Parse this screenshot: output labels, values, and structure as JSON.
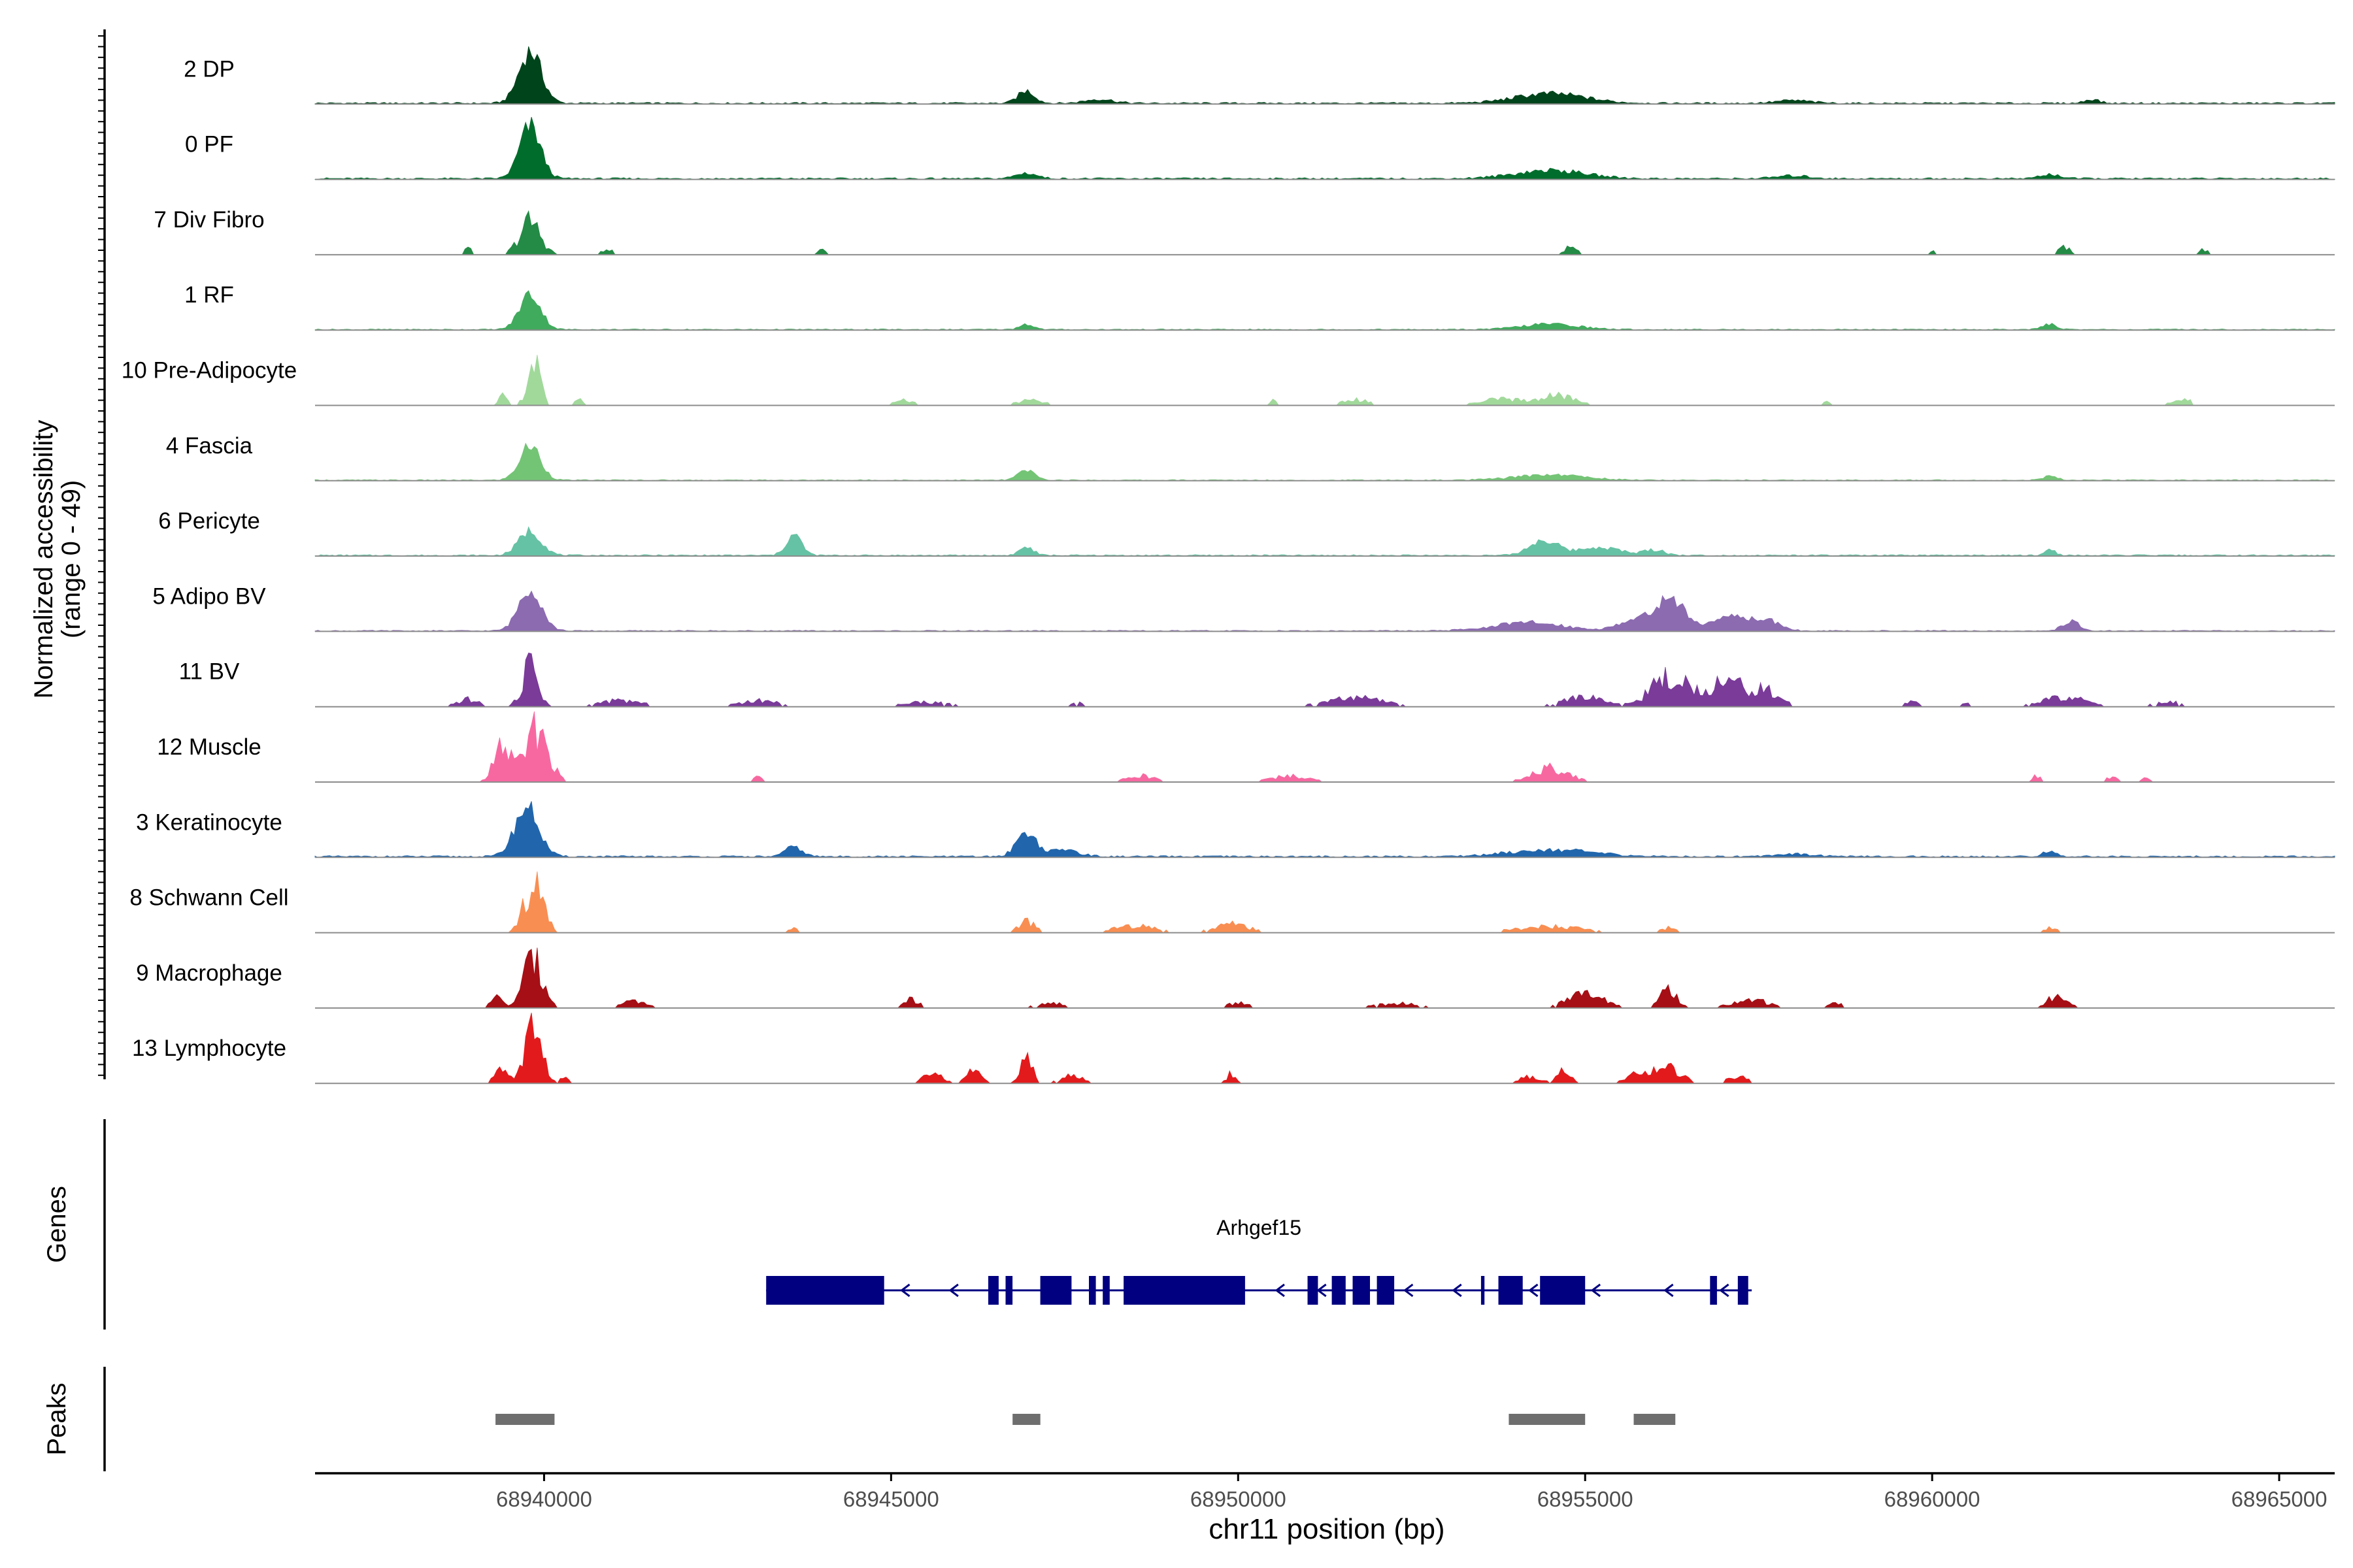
{
  "chart_data": {
    "type": "area",
    "title": "",
    "chromosome": "chr11",
    "xlabel": "chr11 position (bp)",
    "ylabel_line1": "Normalized accessibility",
    "ylabel_line2": "(range 0 - 49)",
    "ylim": [
      0,
      49
    ],
    "xlim": [
      68936700,
      68965800
    ],
    "xticks": [
      68940000,
      68945000,
      68950000,
      68955000,
      68960000,
      68965000
    ],
    "xtick_labels": [
      "68940000",
      "68945000",
      "68950000",
      "68955000",
      "68960000",
      "68965000"
    ],
    "tracks": [
      {
        "name": "2 DP",
        "color": "#00441b",
        "peaks": [
          [
            68939800,
            38,
            160
          ],
          [
            68946950,
            9,
            120
          ],
          [
            68954500,
            7,
            500
          ],
          [
            68948000,
            3,
            200
          ],
          [
            68962300,
            3,
            100
          ],
          [
            68958000,
            2,
            250
          ]
        ],
        "bg": 1.2,
        "scattered": false
      },
      {
        "name": "0 PF",
        "color": "#006d2c",
        "peaks": [
          [
            68939800,
            38,
            150
          ],
          [
            68946950,
            4,
            150
          ],
          [
            68954500,
            6,
            500
          ],
          [
            68961700,
            3,
            150
          ],
          [
            68958000,
            2,
            250
          ]
        ],
        "bg": 1.2,
        "scattered": false
      },
      {
        "name": "7 Div Fibro",
        "color": "#238b45",
        "peaks": [
          [
            68939800,
            27,
            150
          ],
          [
            68938900,
            6,
            50
          ],
          [
            68940900,
            5,
            80
          ],
          [
            68944000,
            6,
            40
          ],
          [
            68954800,
            8,
            80
          ],
          [
            68961900,
            6,
            100
          ],
          [
            68963900,
            5,
            60
          ],
          [
            68960000,
            4,
            40
          ]
        ],
        "bg": 0.6,
        "scattered": true
      },
      {
        "name": "1 RF",
        "color": "#41ab5d",
        "peaks": [
          [
            68939800,
            26,
            150
          ],
          [
            68946950,
            4,
            100
          ],
          [
            68954500,
            4,
            400
          ],
          [
            68961700,
            4,
            100
          ]
        ],
        "bg": 0.8,
        "scattered": false
      },
      {
        "name": "10 Pre-Adipocyte",
        "color": "#a1d99b",
        "peaks": [
          [
            68939850,
            36,
            90
          ],
          [
            68939400,
            8,
            60
          ],
          [
            68940500,
            5,
            80
          ],
          [
            68945200,
            4,
            150
          ],
          [
            68947000,
            4,
            200
          ],
          [
            68950500,
            4,
            50
          ],
          [
            68951700,
            5,
            200
          ],
          [
            68953800,
            5,
            300
          ],
          [
            68954600,
            8,
            250
          ],
          [
            68958500,
            4,
            50
          ],
          [
            68963600,
            5,
            150
          ]
        ],
        "bg": 0.5,
        "scattered": true
      },
      {
        "name": "4 Fascia",
        "color": "#74c476",
        "peaks": [
          [
            68939800,
            25,
            150
          ],
          [
            68946950,
            7,
            120
          ],
          [
            68954500,
            4,
            500
          ],
          [
            68961700,
            3,
            100
          ]
        ],
        "bg": 0.8,
        "scattered": false
      },
      {
        "name": "6 Pericyte",
        "color": "#66c2a4",
        "peaks": [
          [
            68939800,
            18,
            160
          ],
          [
            68943600,
            15,
            110
          ],
          [
            68946950,
            6,
            100
          ],
          [
            68954400,
            11,
            200
          ],
          [
            68955200,
            6,
            300
          ],
          [
            68956000,
            4,
            150
          ],
          [
            68961700,
            4,
            80
          ]
        ],
        "bg": 1,
        "scattered": false
      },
      {
        "name": "5 Adipo BV",
        "color": "#8c6bb1",
        "peaks": [
          [
            68939800,
            32,
            160
          ],
          [
            68956200,
            22,
            260
          ],
          [
            68957100,
            12,
            200
          ],
          [
            68957600,
            8,
            200
          ],
          [
            68962000,
            7,
            120
          ],
          [
            68954200,
            6,
            500
          ],
          [
            68955600,
            5,
            200
          ]
        ],
        "bg": 0.8,
        "scattered": false
      },
      {
        "name": "11 BV",
        "color": "#7a3b99",
        "peaks": [
          [
            68939800,
            36,
            110
          ],
          [
            68956200,
            24,
            250
          ],
          [
            68957000,
            20,
            300
          ],
          [
            68957600,
            12,
            200
          ],
          [
            68955000,
            8,
            300
          ],
          [
            68961900,
            8,
            300
          ],
          [
            68951700,
            7,
            400
          ],
          [
            68938900,
            6,
            150
          ],
          [
            68941100,
            5,
            300
          ],
          [
            68943100,
            5,
            300
          ],
          [
            68945500,
            4,
            300
          ],
          [
            68963400,
            4,
            200
          ],
          [
            68947700,
            3,
            100
          ],
          [
            68959700,
            4,
            100
          ],
          [
            68960500,
            3,
            80
          ]
        ],
        "bg": 0.6,
        "scattered": true
      },
      {
        "name": "12 Muscle",
        "color": "#f768a1",
        "peaks": [
          [
            68939400,
            30,
            120
          ],
          [
            68939900,
            45,
            160
          ],
          [
            68943100,
            6,
            60
          ],
          [
            68948600,
            5,
            200
          ],
          [
            68950800,
            5,
            300
          ],
          [
            68954500,
            12,
            250
          ],
          [
            68961500,
            5,
            60
          ],
          [
            68962600,
            5,
            80
          ],
          [
            68963100,
            4,
            60
          ]
        ],
        "bg": 0.4,
        "scattered": true
      },
      {
        "name": "3 Keratinocyte",
        "color": "#2166ac",
        "peaks": [
          [
            68939750,
            36,
            170
          ],
          [
            68946950,
            18,
            140
          ],
          [
            68943600,
            7,
            120
          ],
          [
            68947500,
            5,
            200
          ],
          [
            68954500,
            5,
            600
          ],
          [
            68961700,
            4,
            100
          ],
          [
            68958000,
            2,
            300
          ]
        ],
        "bg": 1.2,
        "scattered": false
      },
      {
        "name": "8 Schwann Cell",
        "color": "#f98e52",
        "peaks": [
          [
            68939850,
            38,
            140
          ],
          [
            68946950,
            9,
            120
          ],
          [
            68948500,
            6,
            300
          ],
          [
            68949900,
            7,
            250
          ],
          [
            68954500,
            5,
            500
          ],
          [
            68961700,
            5,
            80
          ],
          [
            68943600,
            5,
            60
          ],
          [
            68956200,
            4,
            100
          ]
        ],
        "bg": 0.6,
        "scattered": true
      },
      {
        "name": "9 Macrophage",
        "color": "#a50f15",
        "peaks": [
          [
            68939850,
            38,
            150
          ],
          [
            68939300,
            10,
            80
          ],
          [
            68945300,
            7,
            100
          ],
          [
            68947300,
            4,
            200
          ],
          [
            68950000,
            4,
            150
          ],
          [
            68952300,
            4,
            300
          ],
          [
            68955000,
            12,
            250
          ],
          [
            68956200,
            14,
            120
          ],
          [
            68957400,
            6,
            300
          ],
          [
            68958600,
            5,
            100
          ],
          [
            68961800,
            9,
            150
          ],
          [
            68941300,
            5,
            200
          ]
        ],
        "bg": 0.5,
        "scattered": true
      },
      {
        "name": "13 Lymphocyte",
        "color": "#e31a1c",
        "peaks": [
          [
            68939850,
            48,
            120
          ],
          [
            68939400,
            12,
            100
          ],
          [
            68940300,
            5,
            60
          ],
          [
            68945600,
            7,
            150
          ],
          [
            68946200,
            11,
            100
          ],
          [
            68946950,
            22,
            80
          ],
          [
            68947600,
            7,
            150
          ],
          [
            68949900,
            8,
            60
          ],
          [
            68954200,
            5,
            150
          ],
          [
            68954700,
            10,
            100
          ],
          [
            68955800,
            8,
            200
          ],
          [
            68956200,
            12,
            200
          ],
          [
            68957200,
            5,
            150
          ]
        ],
        "bg": 0,
        "scattered": true
      }
    ],
    "genes": [
      {
        "name": "Arhgef15",
        "strand": "-",
        "start": 68943200,
        "end": 68957400,
        "exons": [
          [
            68943200,
            68944900
          ],
          [
            68946400,
            68946550
          ],
          [
            68946650,
            68946750
          ],
          [
            68947150,
            68947600
          ],
          [
            68947850,
            68947950
          ],
          [
            68948050,
            68948150
          ],
          [
            68948350,
            68950100
          ],
          [
            68951000,
            68951150
          ],
          [
            68951350,
            68951550
          ],
          [
            68951650,
            68951900
          ],
          [
            68952000,
            68952250
          ],
          [
            68953500,
            68953550
          ],
          [
            68953750,
            68954100
          ],
          [
            68954350,
            68955000
          ],
          [
            68956800,
            68956900
          ],
          [
            68957200,
            68957350
          ]
        ],
        "arrows": [
          68945200,
          68945900,
          68950600,
          68951200,
          68952450,
          68953150,
          68954250,
          68955150,
          68956200,
          68957000
        ]
      }
    ],
    "peak_regions": [
      [
        68939300,
        68940150
      ],
      [
        68946750,
        68947150
      ],
      [
        68953900,
        68955000
      ],
      [
        68955700,
        68956300
      ]
    ],
    "panel_labels": {
      "genes": "Genes",
      "peaks": "Peaks"
    }
  }
}
